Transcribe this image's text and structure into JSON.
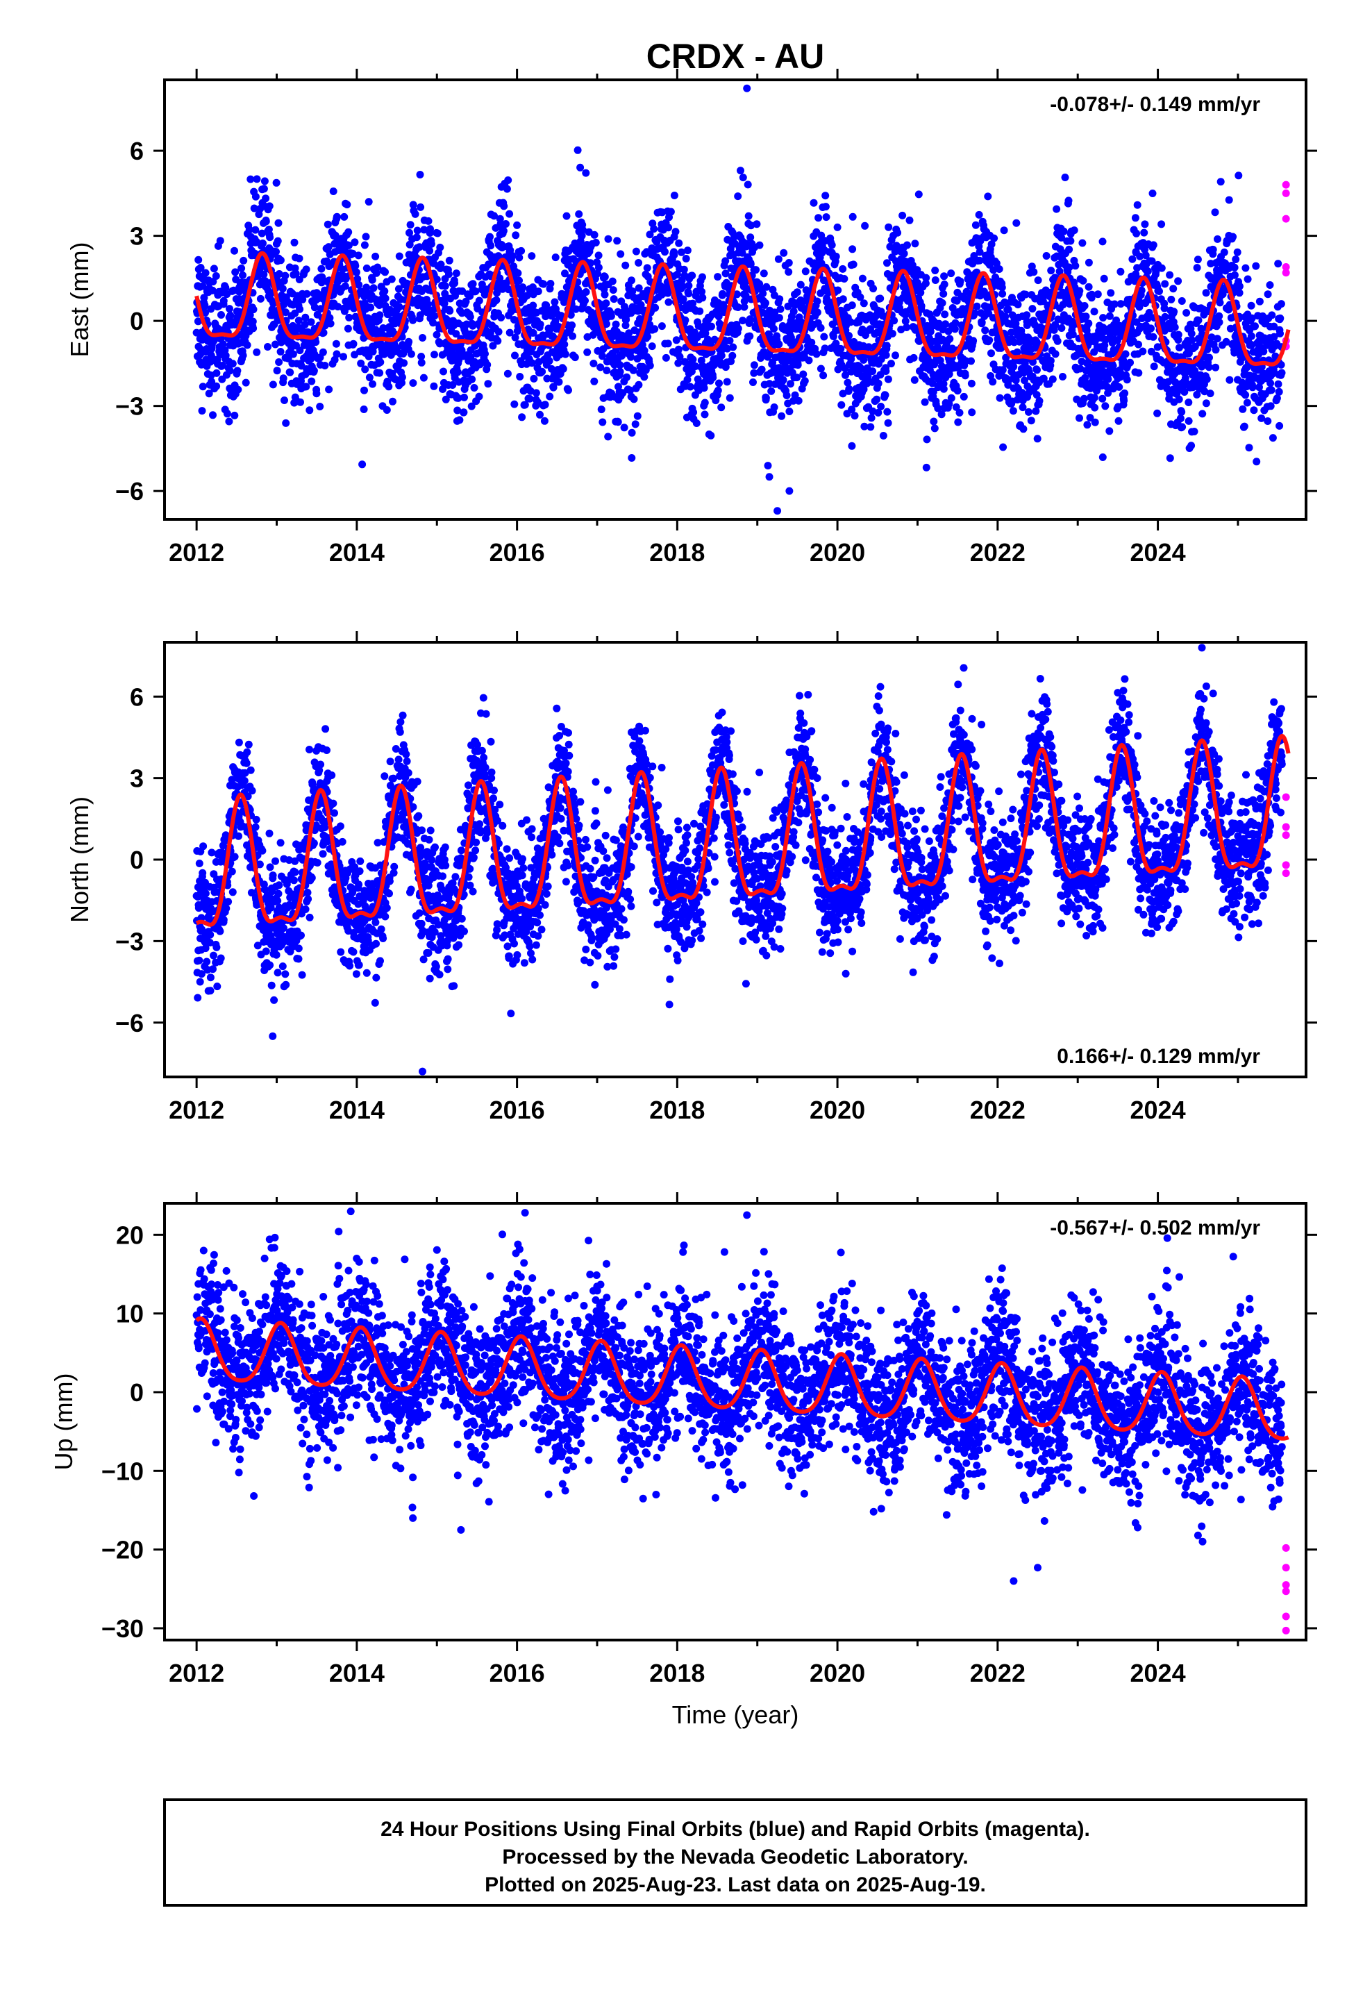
{
  "title": "CRDX - AU",
  "colors": {
    "final": "#0000ff",
    "rapid": "#ff00ff",
    "model": "#ff1111",
    "frame": "#000000"
  },
  "footer": {
    "line1": "24 Hour Positions Using Final Orbits (blue) and Rapid Orbits (magenta).",
    "line2": "Processed by the Nevada Geodetic Laboratory.",
    "line3": "Plotted on 2025-Aug-23. Last data on 2025-Aug-19."
  },
  "chart_data": [
    {
      "type": "scatter",
      "component": "east",
      "ylabel": "East (mm)",
      "xlabel": "",
      "rate_text": "-0.078+/- 0.149 mm/yr",
      "rate_position": "top-right",
      "xlim": [
        2011.6,
        2025.85
      ],
      "ylim": [
        -7.0,
        8.5
      ],
      "xticks": [
        2012,
        2014,
        2016,
        2018,
        2020,
        2022,
        2024
      ],
      "xtick_labels": [
        "2012",
        "2014",
        "2016",
        "2018",
        "2020",
        "2022",
        "2024"
      ],
      "yticks": [
        -6,
        -3,
        0,
        3,
        6
      ],
      "ytick_labels": [
        "−6",
        "−3",
        "0",
        "3",
        "6"
      ],
      "model": {
        "trend_mm_per_yr": -0.078,
        "offset": 0.55,
        "annual_amp": 1.45,
        "annual_phase_peak": 0.82,
        "semiannual_amp": 0.45,
        "start": 2012.0,
        "end": 2025.63
      },
      "final_orbits": {
        "start": 2012.0,
        "end": 2025.55,
        "noise_sd": 1.25,
        "outliers": [
          [
            2018.87,
            8.2
          ],
          [
            2019.15,
            -5.5
          ],
          [
            2019.4,
            -6.0
          ],
          [
            2019.25,
            -6.7
          ],
          [
            2014.15,
            4.2
          ]
        ]
      },
      "rapid_orbits": {
        "x": 2025.6,
        "y": [
          4.8,
          4.5,
          3.6,
          1.9,
          1.7,
          -0.7,
          -0.9
        ]
      },
      "grid": false
    },
    {
      "type": "scatter",
      "component": "north",
      "ylabel": "North (mm)",
      "xlabel": "",
      "rate_text": "0.166+/- 0.129 mm/yr",
      "rate_position": "bottom-right",
      "xlim": [
        2011.6,
        2025.85
      ],
      "ylim": [
        -8.0,
        8.0
      ],
      "xticks": [
        2012,
        2014,
        2016,
        2018,
        2020,
        2022,
        2024
      ],
      "xtick_labels": [
        "2012",
        "2014",
        "2016",
        "2018",
        "2020",
        "2022",
        "2024"
      ],
      "yticks": [
        -6,
        -3,
        0,
        3,
        6
      ],
      "ytick_labels": [
        "−6",
        "−3",
        "0",
        "3",
        "6"
      ],
      "model": {
        "trend_mm_per_yr": 0.166,
        "offset": -0.8,
        "annual_amp": 2.3,
        "annual_phase_peak": 0.55,
        "semiannual_amp": 0.8,
        "start": 2012.0,
        "end": 2025.63
      },
      "final_orbits": {
        "start": 2012.0,
        "end": 2025.55,
        "noise_sd": 1.15,
        "outliers": [
          [
            2014.82,
            -7.8
          ],
          [
            2012.95,
            -6.5
          ],
          [
            2024.55,
            7.8
          ]
        ]
      },
      "rapid_orbits": {
        "x": 2025.6,
        "y": [
          2.3,
          1.2,
          0.9,
          -0.2,
          -0.5
        ]
      },
      "grid": false
    },
    {
      "type": "scatter",
      "component": "up",
      "ylabel": "Up (mm)",
      "xlabel": "Time (year)",
      "rate_text": "-0.567+/- 0.502 mm/yr",
      "rate_position": "top-right",
      "xlim": [
        2011.6,
        2025.85
      ],
      "ylim": [
        -31.5,
        24.0
      ],
      "xticks": [
        2012,
        2014,
        2016,
        2018,
        2020,
        2022,
        2024
      ],
      "xtick_labels": [
        "2012",
        "2014",
        "2016",
        "2018",
        "2020",
        "2022",
        "2024"
      ],
      "yticks": [
        -30,
        -20,
        -10,
        0,
        10,
        20
      ],
      "ytick_labels": [
        "−30",
        "−20",
        "−10",
        "0",
        "10",
        "20"
      ],
      "model": {
        "trend_mm_per_yr": -0.567,
        "offset": 5.0,
        "annual_amp": 3.8,
        "annual_phase_peak": 0.05,
        "semiannual_amp": 0.6,
        "start": 2012.0,
        "end": 2025.63
      },
      "final_orbits": {
        "start": 2012.0,
        "end": 2025.55,
        "noise_sd": 4.6,
        "outliers": [
          [
            2016.1,
            22.8
          ],
          [
            2018.87,
            22.5
          ],
          [
            2015.3,
            -17.5
          ],
          [
            2022.2,
            -24.0
          ],
          [
            2022.5,
            -22.3
          ],
          [
            2014.7,
            -16.0
          ]
        ]
      },
      "rapid_orbits": {
        "x": 2025.6,
        "y": [
          -19.8,
          -22.3,
          -24.5,
          -25.3,
          -28.5,
          -30.3
        ]
      },
      "grid": false
    }
  ]
}
